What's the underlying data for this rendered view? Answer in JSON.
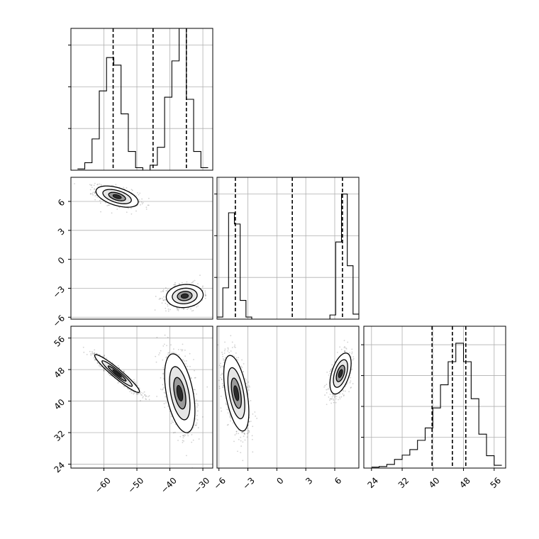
{
  "chart_data": {
    "type": "corner",
    "grid": true,
    "panels": [
      {
        "id": "hist-0",
        "kind": "histogram",
        "row": 0,
        "col": 0,
        "xlim": [
          -70,
          -27
        ],
        "ylim": [
          0,
          3.4
        ],
        "bins": [
          -68,
          -65.8,
          -63.6,
          -61.4,
          -59.2,
          -57,
          -54.8,
          -52.6,
          -50.4,
          -48.2,
          -46,
          -43.8,
          -41.6,
          -39.4,
          -37.2,
          -35,
          -32.8,
          -30.6,
          -28.4
        ],
        "counts": [
          0.03,
          0.18,
          0.75,
          1.9,
          2.7,
          2.52,
          1.35,
          0.45,
          0.06,
          0.0,
          0.12,
          0.55,
          1.75,
          2.62,
          3.42,
          1.7,
          0.45,
          0.06
        ],
        "quantiles": [
          -57.2,
          -45.1,
          -35.0
        ],
        "xticks": [],
        "yticks": [
          1,
          2,
          3
        ]
      },
      {
        "id": "scatter-1-0",
        "kind": "density",
        "row": 1,
        "col": 0,
        "xlim": [
          -70,
          -27
        ],
        "ylim": [
          -6.2,
          8.5
        ],
        "yticks": [
          6,
          3,
          0,
          -3,
          -6
        ],
        "ytick_labels": [
          "6",
          "3",
          "0",
          "−3",
          "−6"
        ],
        "clusters": [
          {
            "cx": -56,
            "cy": 6.5,
            "sx": 3.2,
            "sy": 0.55,
            "rho": -0.5,
            "n": 700
          },
          {
            "cx": -35.5,
            "cy": -3.8,
            "sx": 2.8,
            "sy": 0.6,
            "rho": 0.1,
            "n": 650
          }
        ]
      },
      {
        "id": "hist-1",
        "kind": "histogram",
        "row": 1,
        "col": 1,
        "xlim": [
          -6.2,
          8.5
        ],
        "ylim": [
          0,
          3.4
        ],
        "bins": [
          -6.2,
          -5.6,
          -5.0,
          -4.4,
          -3.8,
          -3.2,
          -2.6,
          -2.0,
          5.5,
          6.1,
          6.7,
          7.3,
          7.9,
          8.5
        ],
        "counts": [
          0.05,
          0.75,
          2.55,
          2.28,
          0.45,
          0.05,
          0.0,
          0.0,
          0.1,
          1.85,
          3.0,
          1.28,
          0.12
        ],
        "quantiles": [
          -4.3,
          1.6,
          6.8
        ],
        "xticks": [],
        "yticks": [
          1,
          2,
          3
        ]
      },
      {
        "id": "scatter-2-0",
        "kind": "density",
        "row": 2,
        "col": 0,
        "xlim": [
          -70,
          -27
        ],
        "ylim": [
          23,
          59
        ],
        "xticks": [
          -60,
          -50,
          -40,
          -30
        ],
        "xtick_labels": [
          "−60",
          "−50",
          "−40",
          "−30"
        ],
        "yticks": [
          56,
          48,
          40,
          32,
          24
        ],
        "ytick_labels": [
          "56",
          "48",
          "40",
          "32",
          "24"
        ],
        "clusters": [
          {
            "cx": -56,
            "cy": 47,
            "sx": 3.4,
            "sy": 2.4,
            "rho": -0.95,
            "n": 900
          },
          {
            "cx": -37,
            "cy": 42,
            "sx": 2.3,
            "sy": 5.0,
            "rho": -0.45,
            "n": 850
          }
        ]
      },
      {
        "id": "scatter-2-1",
        "kind": "density",
        "row": 2,
        "col": 1,
        "xlim": [
          -6.2,
          8.5
        ],
        "ylim": [
          23,
          59
        ],
        "xticks": [
          -6,
          -3,
          0,
          3,
          6
        ],
        "xtick_labels": [
          "−6",
          "−3",
          "0",
          "3",
          "6"
        ],
        "clusters": [
          {
            "cx": -4.2,
            "cy": 42,
            "sx": 0.65,
            "sy": 4.8,
            "rho": -0.5,
            "n": 850
          },
          {
            "cx": 6.6,
            "cy": 47,
            "sx": 0.55,
            "sy": 2.6,
            "rho": 0.5,
            "n": 750
          }
        ]
      },
      {
        "id": "hist-2",
        "kind": "histogram",
        "row": 2,
        "col": 2,
        "xlim": [
          22,
          59
        ],
        "ylim": [
          0,
          4.6
        ],
        "bins": [
          24,
          26,
          28,
          30,
          32,
          34,
          36,
          38,
          40,
          42,
          44,
          46,
          48,
          50,
          52,
          54,
          56,
          58
        ],
        "counts": [
          0.03,
          0.05,
          0.12,
          0.28,
          0.42,
          0.6,
          0.9,
          1.3,
          1.95,
          2.7,
          3.45,
          4.05,
          3.45,
          2.25,
          1.1,
          0.4,
          0.09
        ],
        "quantiles": [
          39.8,
          45.1,
          48.6
        ],
        "xticks": [
          24,
          32,
          40,
          48,
          56
        ],
        "xtick_labels": [
          "24",
          "32",
          "40",
          "48",
          "56"
        ],
        "yticks": [
          1,
          2,
          3,
          4
        ]
      }
    ]
  }
}
